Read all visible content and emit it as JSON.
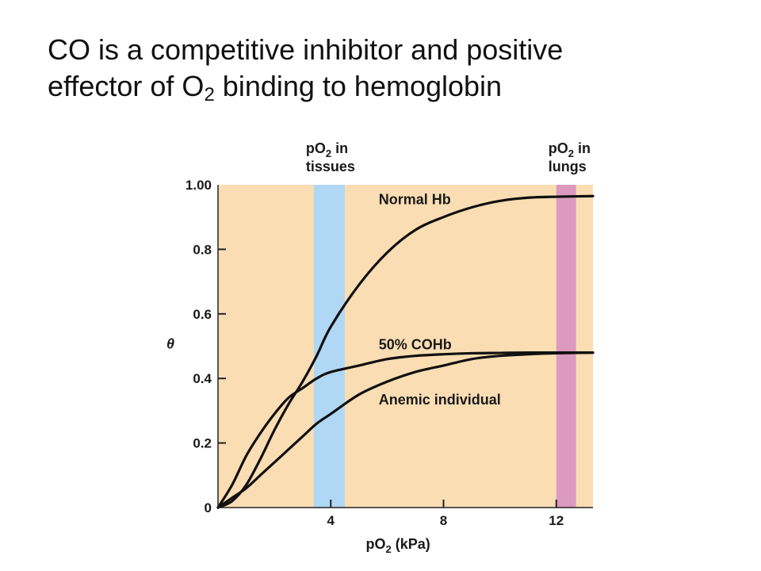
{
  "slide": {
    "title_line1": "CO is a competitive inhibitor and positive",
    "title_line2_prefix": "effector of O",
    "title_line2_sub": "2",
    "title_line2_suffix": " binding to hemoglobin"
  },
  "chart_data": {
    "type": "line",
    "xlabel_main": "pO",
    "xlabel_sub": "2",
    "xlabel_suffix": " (kPa)",
    "ylabel": "θ",
    "xlim": [
      0,
      13.3
    ],
    "ylim": [
      0,
      1.0
    ],
    "x_ticks": [
      {
        "value": 4,
        "label": "4"
      },
      {
        "value": 8,
        "label": "8"
      },
      {
        "value": 12,
        "label": "12"
      }
    ],
    "y_ticks": [
      {
        "value": 0,
        "label": "0"
      },
      {
        "value": 0.2,
        "label": "0.2"
      },
      {
        "value": 0.4,
        "label": "0.4"
      },
      {
        "value": 0.6,
        "label": "0.6"
      },
      {
        "value": 0.8,
        "label": "0.8"
      },
      {
        "value": 1.0,
        "label": "1.00"
      }
    ],
    "bands": [
      {
        "name": "tissues",
        "x_start": 3.4,
        "x_end": 4.5,
        "color": "#b0d8f5",
        "label_main": "pO",
        "label_sub": "2",
        "label_suffix": " in",
        "label_line2": "tissues"
      },
      {
        "name": "lungs",
        "x_start": 12.0,
        "x_end": 12.7,
        "color": "#dc9ac0",
        "label_main": "pO",
        "label_sub": "2",
        "label_suffix": " in",
        "label_line2": "lungs"
      }
    ],
    "background_color": "#fbddb4",
    "series": [
      {
        "name": "Normal Hb",
        "points": [
          [
            0,
            0
          ],
          [
            0.5,
            0.02
          ],
          [
            1,
            0.07
          ],
          [
            1.5,
            0.15
          ],
          [
            2,
            0.24
          ],
          [
            2.5,
            0.32
          ],
          [
            3,
            0.39
          ],
          [
            3.5,
            0.47
          ],
          [
            4,
            0.56
          ],
          [
            5,
            0.69
          ],
          [
            6,
            0.79
          ],
          [
            7,
            0.86
          ],
          [
            8,
            0.9
          ],
          [
            9,
            0.93
          ],
          [
            10,
            0.95
          ],
          [
            11,
            0.96
          ],
          [
            12,
            0.963
          ],
          [
            13.3,
            0.965
          ]
        ]
      },
      {
        "name": "50% COHb",
        "points": [
          [
            0,
            0
          ],
          [
            0.5,
            0.07
          ],
          [
            1,
            0.16
          ],
          [
            1.5,
            0.23
          ],
          [
            2,
            0.29
          ],
          [
            2.5,
            0.34
          ],
          [
            3,
            0.37
          ],
          [
            3.5,
            0.4
          ],
          [
            4,
            0.42
          ],
          [
            5,
            0.44
          ],
          [
            6,
            0.46
          ],
          [
            7,
            0.47
          ],
          [
            8,
            0.475
          ],
          [
            9,
            0.478
          ],
          [
            10,
            0.479
          ],
          [
            11,
            0.48
          ],
          [
            13.3,
            0.48
          ]
        ]
      },
      {
        "name": "Anemic individual",
        "points": [
          [
            0,
            0
          ],
          [
            0.5,
            0.03
          ],
          [
            1,
            0.06
          ],
          [
            1.5,
            0.1
          ],
          [
            2,
            0.14
          ],
          [
            2.5,
            0.18
          ],
          [
            3,
            0.22
          ],
          [
            3.5,
            0.26
          ],
          [
            4,
            0.29
          ],
          [
            5,
            0.35
          ],
          [
            6,
            0.39
          ],
          [
            7,
            0.42
          ],
          [
            8,
            0.44
          ],
          [
            9,
            0.46
          ],
          [
            10,
            0.47
          ],
          [
            11,
            0.475
          ],
          [
            12,
            0.478
          ],
          [
            13.3,
            0.48
          ]
        ]
      }
    ],
    "series_label_anchor_x": [
      5.7,
      5.7,
      5.7
    ],
    "series_label_anchor_y": [
      0.94,
      0.49,
      0.32
    ],
    "line_color": "#111111"
  }
}
